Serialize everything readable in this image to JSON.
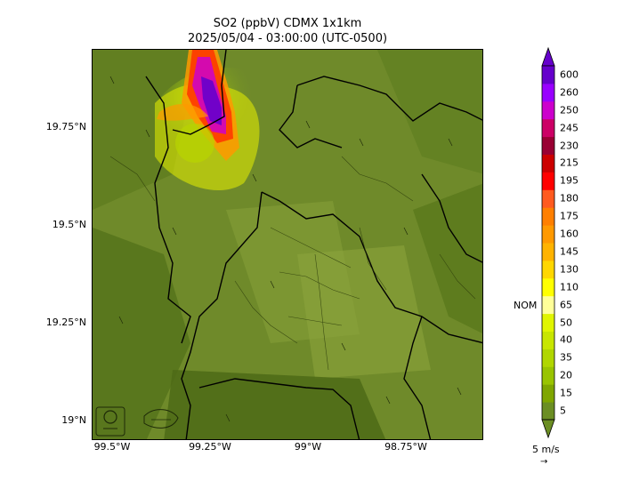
{
  "title_line1": "SO2 (ppbV) CDMX 1x1km",
  "title_line2": "2025/05/04 - 03:00:00 (UTC-0500)",
  "lat_labels": [
    "19.75°N",
    "19.5°N",
    "19.25°N",
    "19°N"
  ],
  "lon_labels": [
    "99.5°W",
    "99.25°W",
    "99°W",
    "98.75°W"
  ],
  "colorbar": {
    "levels": [
      "5",
      "15",
      "20",
      "35",
      "40",
      "50",
      "65",
      "110",
      "130",
      "145",
      "160",
      "175",
      "180",
      "195",
      "215",
      "230",
      "245",
      "250",
      "260",
      "600"
    ],
    "colors": [
      "#6b8e23",
      "#7fa600",
      "#99c400",
      "#b0d600",
      "#c8e600",
      "#e0f500",
      "#ffff99",
      "#ffff00",
      "#ffd700",
      "#ffb300",
      "#ff9900",
      "#ff7f00",
      "#ff5a1f",
      "#ff0000",
      "#cc0000",
      "#990033",
      "#cc0066",
      "#cc00cc",
      "#9900ff",
      "#6600cc"
    ],
    "nom_label": "NOM"
  },
  "wind": {
    "unit_label": "5 m/s",
    "arrow": "→"
  },
  "map": {
    "terrain_base": "#6f8a2a",
    "boundary_color": "#000000"
  }
}
